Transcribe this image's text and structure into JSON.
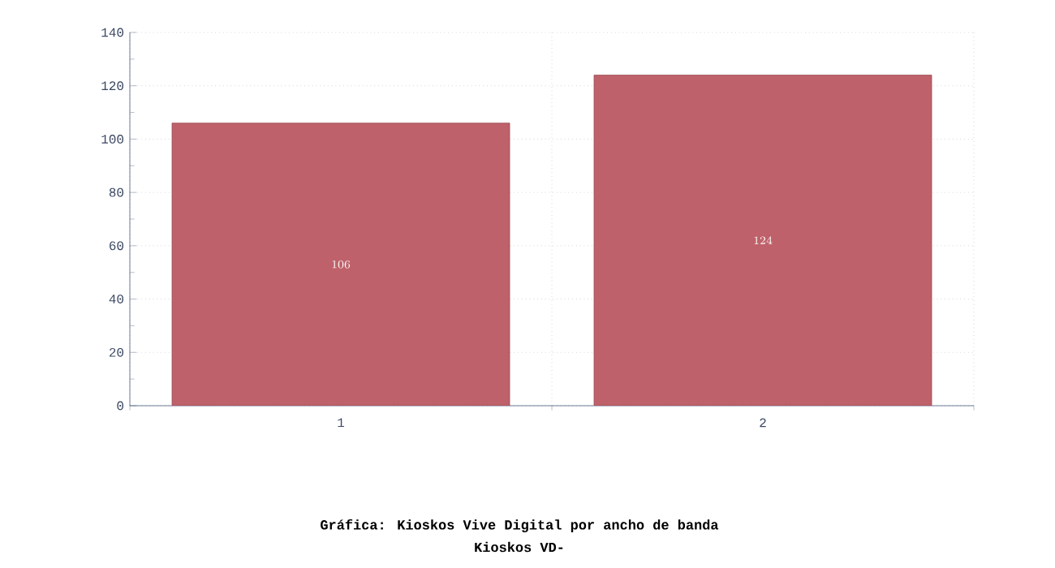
{
  "chart_data": {
    "type": "bar",
    "title": "Gráfica: Kioskos Vive Digital por ancho de banda",
    "subtitle": "Kioskos VD-",
    "categories": [
      "1",
      "2"
    ],
    "values": [
      106,
      124
    ],
    "color": "#bf616a",
    "ylim": [
      0,
      140
    ],
    "yticks": [
      0,
      20,
      40,
      60,
      80,
      100,
      120,
      140
    ],
    "grid": true,
    "data_labels": true
  }
}
